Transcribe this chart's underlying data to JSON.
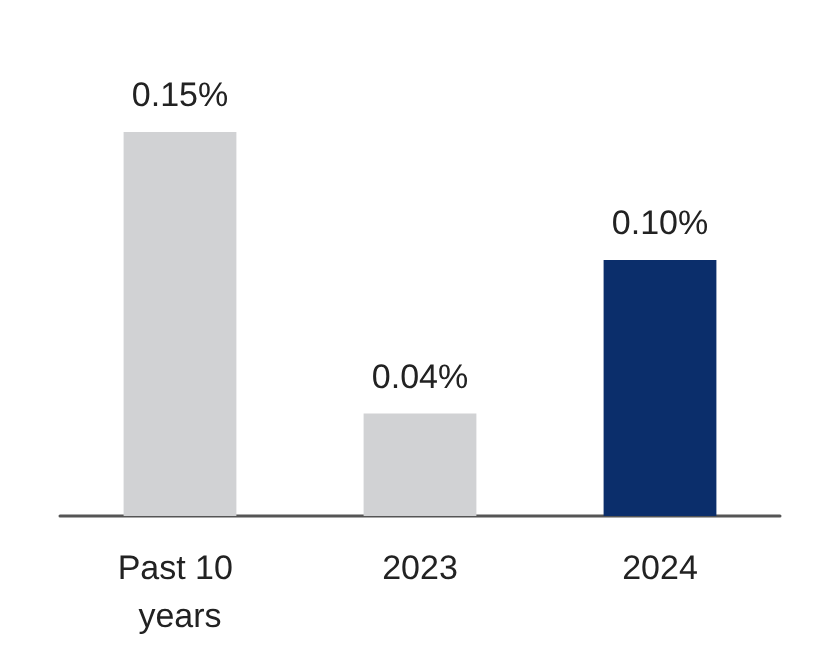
{
  "chart_data": {
    "type": "bar",
    "categories": [
      "Past 10 years",
      "2023",
      "2024"
    ],
    "values": [
      0.15,
      0.04,
      0.1
    ],
    "value_labels": [
      "0.15%",
      "0.04%",
      "0.10%"
    ],
    "colors": [
      "#d1d2d4",
      "#d1d2d4",
      "#0b2e6b"
    ]
  }
}
